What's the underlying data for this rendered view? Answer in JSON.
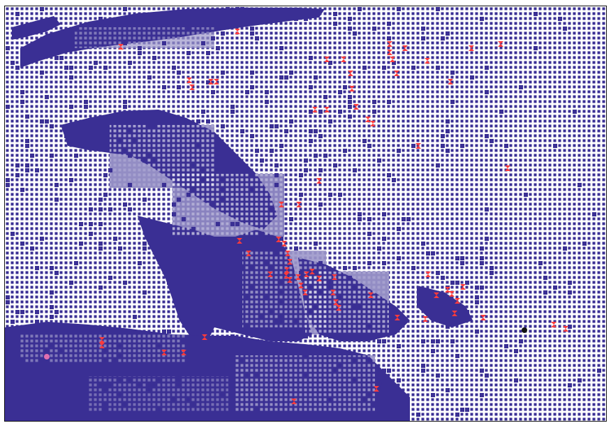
{
  "image": {
    "background_color": "#ffffff",
    "border_color": "#111111",
    "grid_color": "#3a2f94",
    "hollow_cell_fill": "#ffffff",
    "marker_color": "#ff3b3b",
    "special_marker_color": "#111111",
    "pink_marker_color": "#e06fb0"
  }
}
